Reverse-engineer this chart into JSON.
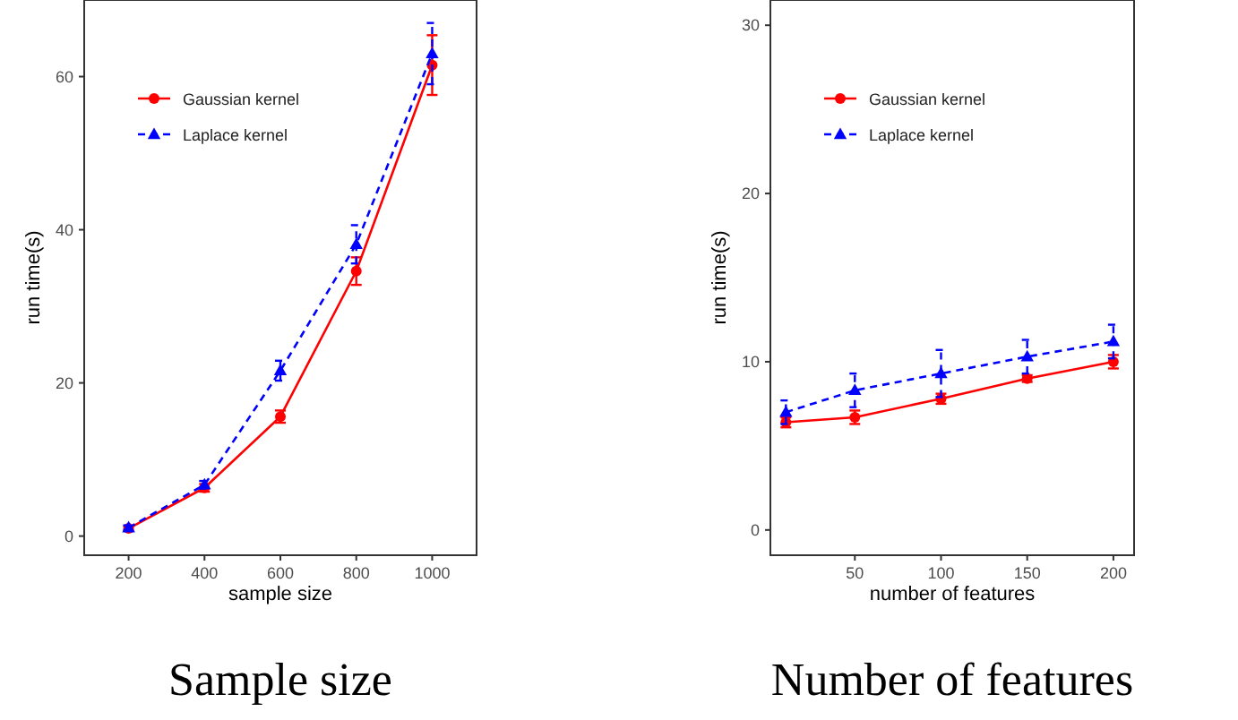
{
  "chart_data": [
    {
      "type": "line",
      "title": "Sample size",
      "xlabel": "sample size",
      "ylabel": "run time(s)",
      "x": [
        200,
        400,
        600,
        800,
        1000
      ],
      "xlim": [
        83,
        1117
      ],
      "xticks": [
        200,
        400,
        600,
        800,
        1000
      ],
      "ylim": [
        -2.5,
        70
      ],
      "yticks": [
        0,
        20,
        40,
        60
      ],
      "legend": "top left",
      "series": [
        {
          "name": "Gaussian kernel",
          "color": "#ff0000",
          "marker": "circle",
          "line_style": "solid",
          "values": [
            1,
            6.3,
            15.6,
            34.6,
            61.5
          ],
          "errors": [
            0.3,
            0.5,
            0.8,
            1.8,
            3.9
          ]
        },
        {
          "name": "Laplace kernel",
          "color": "#0000ff",
          "marker": "triangle",
          "line_style": "dashed",
          "values": [
            1.1,
            6.7,
            21.6,
            38.1,
            63
          ],
          "errors": [
            0.3,
            0.5,
            1.3,
            2.5,
            4
          ]
        }
      ]
    },
    {
      "type": "line",
      "title": "Number of features",
      "xlabel": "number of features",
      "ylabel": "run time(s)",
      "x": [
        10,
        50,
        100,
        150,
        200
      ],
      "xlim": [
        1,
        212
      ],
      "xticks": [
        50,
        100,
        150,
        200
      ],
      "ylim": [
        -1.5,
        31.5
      ],
      "yticks": [
        0,
        10,
        20,
        30
      ],
      "legend": "top left",
      "series": [
        {
          "name": "Gaussian kernel",
          "color": "#ff0000",
          "marker": "circle",
          "line_style": "solid",
          "values": [
            6.4,
            6.7,
            7.8,
            9.0,
            10.0
          ],
          "errors": [
            0.3,
            0.4,
            0.3,
            0.2,
            0.4
          ]
        },
        {
          "name": "Laplace kernel",
          "color": "#0000ff",
          "marker": "triangle",
          "line_style": "dashed",
          "values": [
            7.0,
            8.3,
            9.3,
            10.3,
            11.2
          ],
          "errors": [
            0.7,
            1.0,
            1.4,
            1.0,
            1.0
          ]
        }
      ]
    }
  ]
}
